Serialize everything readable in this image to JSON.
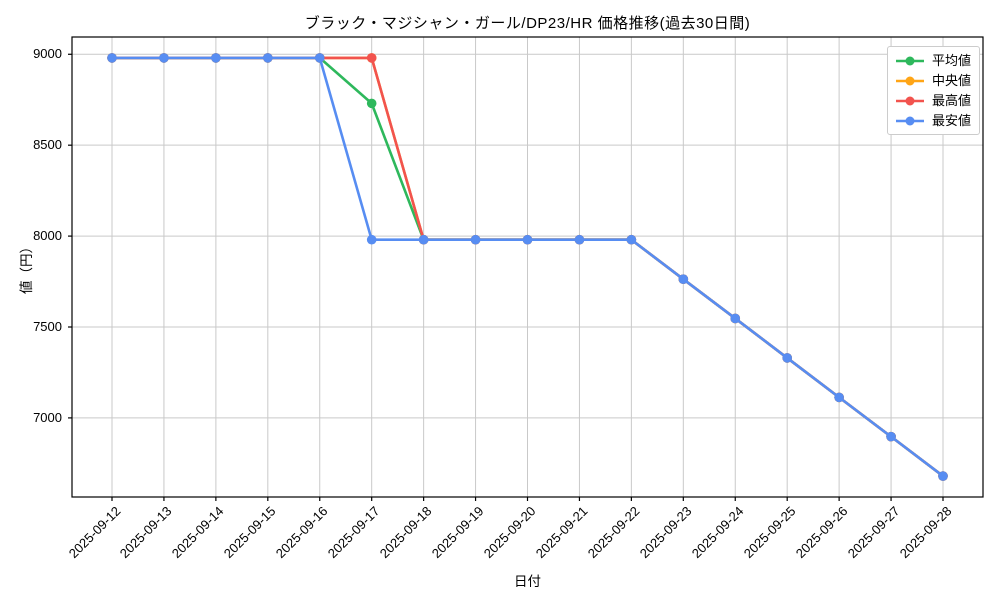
{
  "chart_data": {
    "type": "line",
    "title": "ブラック・マジシャン・ガール/DP23/HR 価格推移(過去30日間)",
    "xlabel": "日付",
    "ylabel": "値（円）",
    "x": [
      "2025-09-12",
      "2025-09-13",
      "2025-09-14",
      "2025-09-15",
      "2025-09-16",
      "2025-09-17",
      "2025-09-18",
      "2025-09-19",
      "2025-09-20",
      "2025-09-21",
      "2025-09-22",
      "2025-09-23",
      "2025-09-24",
      "2025-09-25",
      "2025-09-26",
      "2025-09-27",
      "2025-09-28"
    ],
    "series": [
      {
        "key": "avg",
        "name": "平均値",
        "color": "#2eb85c",
        "values": [
          8980,
          8980,
          8980,
          8980,
          8980,
          8730,
          7980,
          7980,
          7980,
          7980,
          7980,
          7763,
          7547,
          7330,
          7113,
          6897,
          6680
        ]
      },
      {
        "key": "median",
        "name": "中央値",
        "color": "#ffa516",
        "values": [
          8980,
          8980,
          8980,
          8980,
          8980,
          8980,
          7980,
          7980,
          7980,
          7980,
          7980,
          7763,
          7547,
          7330,
          7113,
          6897,
          6680
        ]
      },
      {
        "key": "max",
        "name": "最高値",
        "color": "#f2534e",
        "values": [
          8980,
          8980,
          8980,
          8980,
          8980,
          8980,
          7980,
          7980,
          7980,
          7980,
          7980,
          7763,
          7547,
          7330,
          7113,
          6897,
          6680
        ]
      },
      {
        "key": "min",
        "name": "最安値",
        "color": "#578df2",
        "values": [
          8980,
          8980,
          8980,
          8980,
          8980,
          7980,
          7980,
          7980,
          7980,
          7980,
          7980,
          7763,
          7547,
          7330,
          7113,
          6897,
          6680
        ]
      }
    ],
    "yticks": [
      7000,
      7500,
      8000,
      8500,
      9000
    ],
    "ylim": [
      6565,
      9095
    ],
    "grid": true,
    "legend": {
      "position": "upper right",
      "entries": [
        "平均値",
        "中央値",
        "最高値",
        "最安値"
      ]
    }
  },
  "colors": {
    "grid": "#c9c9c9",
    "axis": "#000000",
    "background": "#ffffff",
    "legend_border": "#cccccc"
  }
}
